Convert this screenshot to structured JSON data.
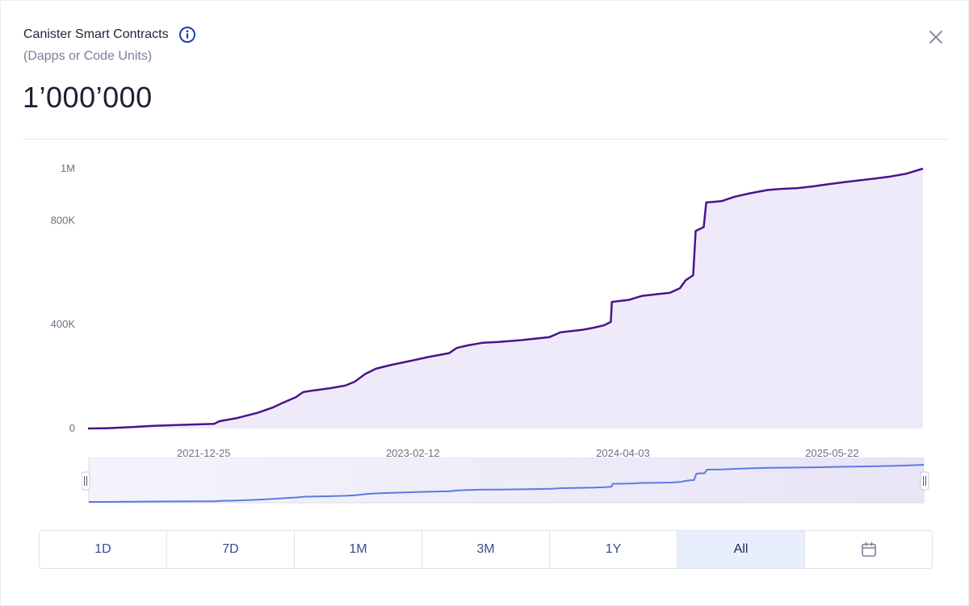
{
  "header": {
    "title": "Canister Smart Contracts",
    "subtitle": "(Dapps or Code Units)",
    "value": "1’000’000"
  },
  "icons": {
    "info": "info-icon",
    "close": "close-icon",
    "calendar": "calendar-icon"
  },
  "colors": {
    "line": "#4a148c",
    "area": "#efeafa",
    "navigator_line": "#5b7be3",
    "active_range_bg": "#e8eefc"
  },
  "chart_data": {
    "type": "area",
    "title": "",
    "xlabel": "",
    "ylabel": "",
    "ylim": [
      0,
      1000000
    ],
    "y_ticks": [
      {
        "value": 0,
        "label": "0"
      },
      {
        "value": 400000,
        "label": "400K"
      },
      {
        "value": 800000,
        "label": "800K"
      },
      {
        "value": 1000000,
        "label": "1M"
      }
    ],
    "x_ticks": [
      {
        "value": "2021-12-25",
        "label": "2021-12-25"
      },
      {
        "value": "2023-02-12",
        "label": "2023-02-12"
      },
      {
        "value": "2024-04-03",
        "label": "2024-04-03"
      },
      {
        "value": "2025-05-22",
        "label": "2025-05-22"
      }
    ],
    "xlim": [
      "2021-05-10",
      "2025-11-18"
    ],
    "series": [
      {
        "points": [
          [
            "2021-05-10",
            0
          ],
          [
            "2021-06-15",
            1000
          ],
          [
            "2021-08-01",
            5000
          ],
          [
            "2021-09-15",
            10000
          ],
          [
            "2021-11-01",
            13000
          ],
          [
            "2021-12-20",
            16000
          ],
          [
            "2022-01-15",
            18000
          ],
          [
            "2022-01-25",
            28000
          ],
          [
            "2022-03-01",
            40000
          ],
          [
            "2022-04-10",
            60000
          ],
          [
            "2022-05-10",
            80000
          ],
          [
            "2022-06-01",
            100000
          ],
          [
            "2022-06-25",
            120000
          ],
          [
            "2022-07-10",
            140000
          ],
          [
            "2022-08-01",
            147000
          ],
          [
            "2022-09-01",
            155000
          ],
          [
            "2022-10-01",
            165000
          ],
          [
            "2022-10-20",
            180000
          ],
          [
            "2022-11-10",
            210000
          ],
          [
            "2022-12-01",
            230000
          ],
          [
            "2023-01-01",
            245000
          ],
          [
            "2023-02-12",
            262000
          ],
          [
            "2023-03-15",
            275000
          ],
          [
            "2023-04-25",
            290000
          ],
          [
            "2023-05-10",
            310000
          ],
          [
            "2023-06-01",
            320000
          ],
          [
            "2023-07-01",
            330000
          ],
          [
            "2023-08-01",
            333000
          ],
          [
            "2023-09-15",
            340000
          ],
          [
            "2023-11-10",
            352000
          ],
          [
            "2023-12-01",
            370000
          ],
          [
            "2024-01-15",
            380000
          ],
          [
            "2024-02-05",
            388000
          ],
          [
            "2024-02-25",
            397000
          ],
          [
            "2024-03-10",
            410000
          ],
          [
            "2024-03-12",
            487000
          ],
          [
            "2024-04-15",
            495000
          ],
          [
            "2024-05-10",
            510000
          ],
          [
            "2024-06-10",
            517000
          ],
          [
            "2024-07-05",
            522000
          ],
          [
            "2024-07-25",
            540000
          ],
          [
            "2024-08-05",
            570000
          ],
          [
            "2024-08-20",
            590000
          ],
          [
            "2024-08-25",
            760000
          ],
          [
            "2024-09-10",
            775000
          ],
          [
            "2024-09-15",
            870000
          ],
          [
            "2024-10-15",
            875000
          ],
          [
            "2024-11-10",
            892000
          ],
          [
            "2024-12-10",
            905000
          ],
          [
            "2025-01-15",
            918000
          ],
          [
            "2025-02-10",
            922000
          ],
          [
            "2025-03-15",
            925000
          ],
          [
            "2025-04-15",
            932000
          ],
          [
            "2025-05-15",
            940000
          ],
          [
            "2025-06-15",
            948000
          ],
          [
            "2025-07-15",
            955000
          ],
          [
            "2025-08-15",
            962000
          ],
          [
            "2025-09-15",
            970000
          ],
          [
            "2025-10-15",
            980000
          ],
          [
            "2025-11-18",
            1000000
          ]
        ]
      }
    ],
    "grid": false
  },
  "range_buttons": [
    {
      "label": "1D",
      "active": false
    },
    {
      "label": "7D",
      "active": false
    },
    {
      "label": "1M",
      "active": false
    },
    {
      "label": "3M",
      "active": false
    },
    {
      "label": "1Y",
      "active": false
    },
    {
      "label": "All",
      "active": true
    }
  ]
}
